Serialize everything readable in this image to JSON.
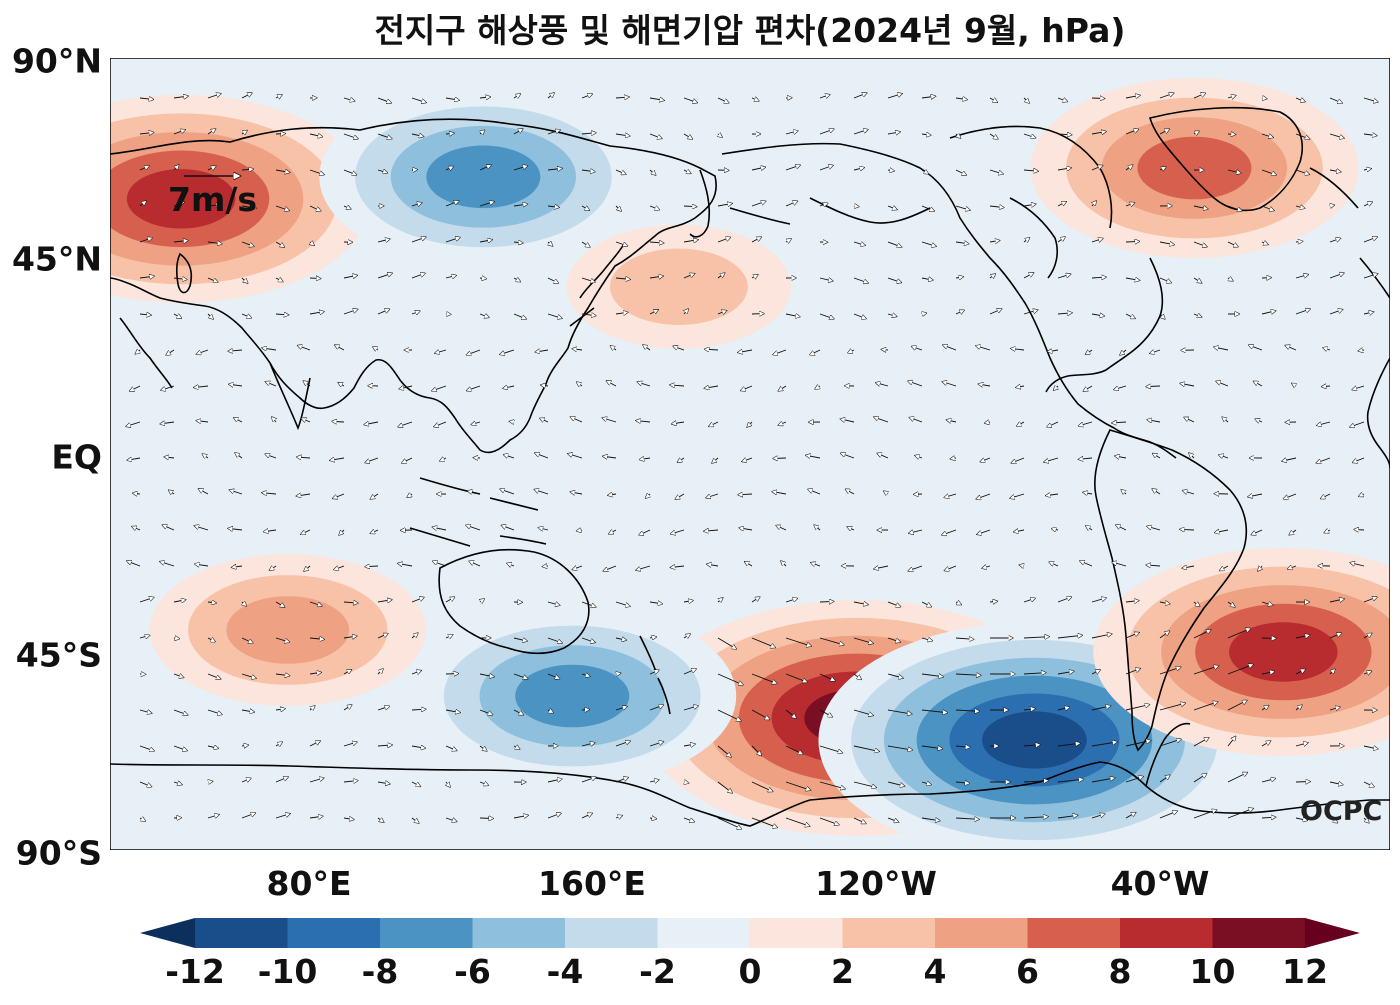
{
  "title": "전지구 해상풍 및 해면기압 편차(2024년 9월, hPa)",
  "y_axis": {
    "ticks": [
      "90°N",
      "45°N",
      "EQ",
      "45°S",
      "90°S"
    ]
  },
  "x_axis": {
    "ticks": [
      "80°E",
      "160°E",
      "120°W",
      "40°W"
    ]
  },
  "wind_reference": {
    "label": "7m/s"
  },
  "brand": "OCPC",
  "colorbar": {
    "ticks": [
      "-12",
      "-10",
      "-8",
      "-6",
      "-4",
      "-2",
      "0",
      "2",
      "4",
      "6",
      "8",
      "10",
      "12"
    ],
    "colors": [
      "#1a4e8a",
      "#2c6fb0",
      "#4b93c3",
      "#8ec0dd",
      "#c3dbeb",
      "#e6f0f6",
      "#fbe5dc",
      "#f7c2a8",
      "#eea183",
      "#d6604d",
      "#b82b2f",
      "#7a0f23"
    ],
    "under_color": "#0c2f5d",
    "over_color": "#67001f"
  },
  "chart_data": {
    "type": "heatmap",
    "title": "전지구 해상풍 및 해면기압 편차(2024년 9월, hPa)",
    "lon_range": [
      40,
      400
    ],
    "lat_range": [
      -90,
      90
    ],
    "levels": [
      -12,
      -10,
      -8,
      -6,
      -4,
      -2,
      0,
      2,
      4,
      6,
      8,
      10,
      12
    ],
    "anomaly_centers": [
      {
        "name": "",
        "lon": 60,
        "lat": 58,
        "value": 10
      },
      {
        "name": "",
        "lon": 145,
        "lat": 63,
        "value": -8
      },
      {
        "name": "",
        "lon": 345,
        "lat": 65,
        "value": 8
      },
      {
        "name": "",
        "lon": 200,
        "lat": 38,
        "value": 4
      },
      {
        "name": "",
        "lon": 250,
        "lat": -60,
        "value": 12
      },
      {
        "name": "",
        "lon": 300,
        "lat": -65,
        "value": -12
      },
      {
        "name": "",
        "lon": 170,
        "lat": -55,
        "value": -8
      },
      {
        "name": "",
        "lon": 90,
        "lat": -40,
        "value": 5
      },
      {
        "name": "",
        "lon": 370,
        "lat": -45,
        "value": 10
      }
    ],
    "wind_reference_speed": "7m/s"
  }
}
